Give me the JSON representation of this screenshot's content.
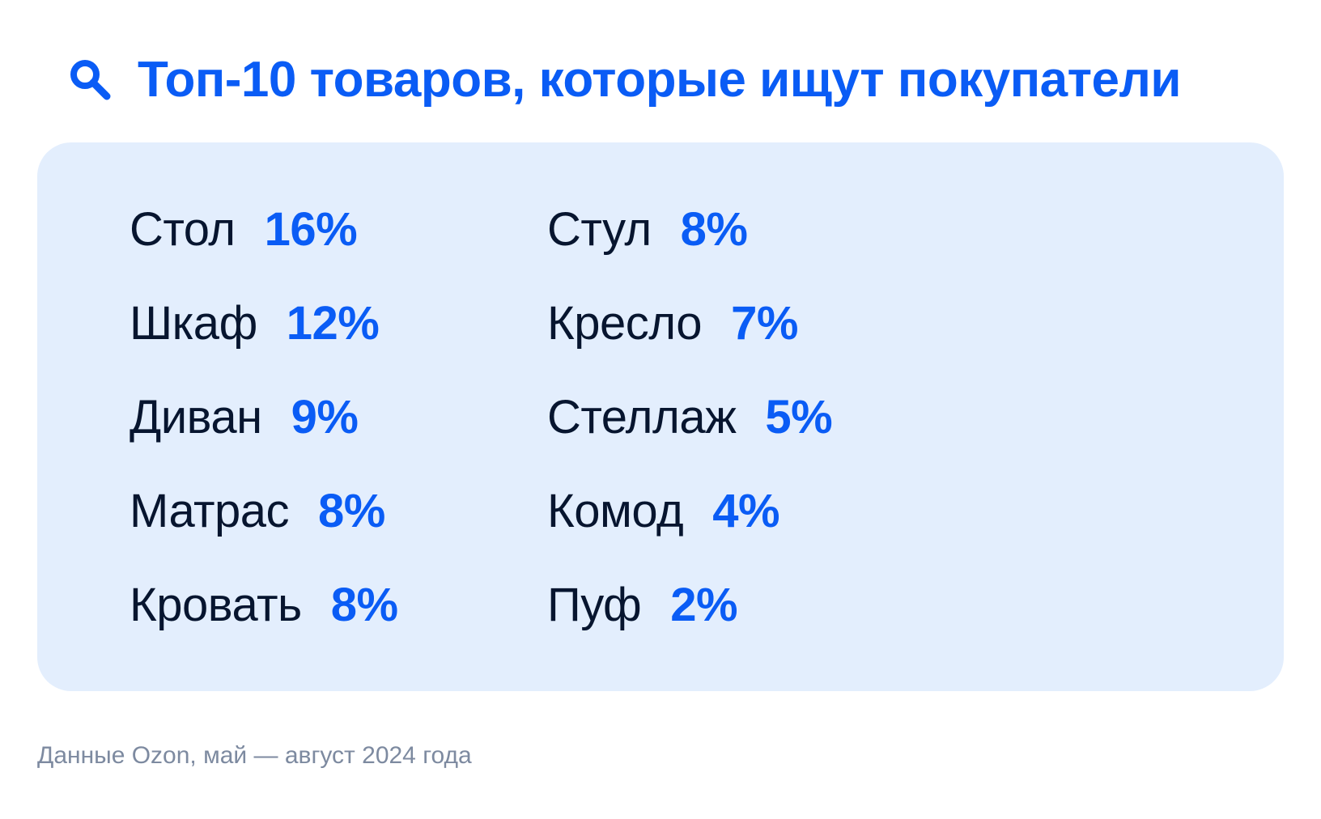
{
  "colors": {
    "accent": "#0a5cf5",
    "text_dark": "#07152f",
    "card_bg": "#e3eefd",
    "footnote": "#7d8aa0",
    "page_bg": "#ffffff"
  },
  "header": {
    "icon": "search-icon",
    "title": "Топ-10 товаров, которые ищут покупатели"
  },
  "items": {
    "left": [
      {
        "name": "Стол",
        "percent": "16%"
      },
      {
        "name": "Шкаф",
        "percent": "12%"
      },
      {
        "name": "Диван",
        "percent": "9%"
      },
      {
        "name": "Матрас",
        "percent": "8%"
      },
      {
        "name": "Кровать",
        "percent": "8%"
      }
    ],
    "right": [
      {
        "name": "Стул",
        "percent": "8%"
      },
      {
        "name": "Кресло",
        "percent": "7%"
      },
      {
        "name": "Стеллаж",
        "percent": "5%"
      },
      {
        "name": "Комод",
        "percent": "4%"
      },
      {
        "name": "Пуф",
        "percent": "2%"
      }
    ]
  },
  "footnote": "Данные Ozon, май — август 2024 года"
}
